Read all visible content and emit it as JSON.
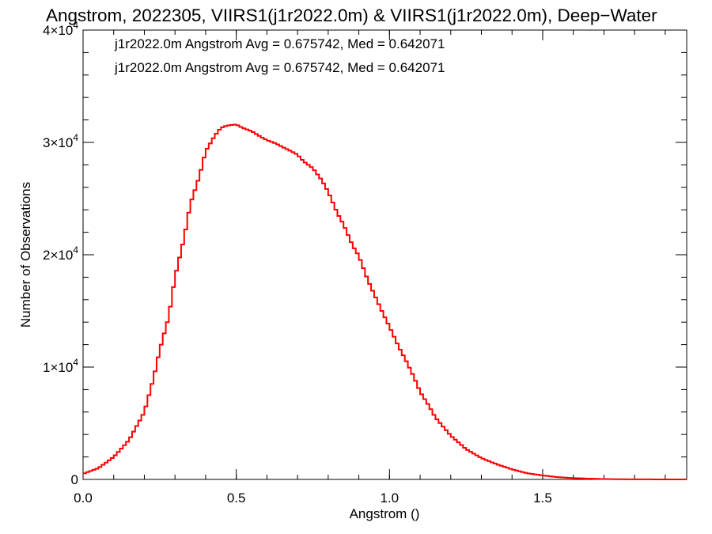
{
  "chart_data": {
    "type": "line",
    "title": "Angstrom, 2022305, VIIRS1(j1r2022.0m) & VIIRS1(j1r2022.0m), Deep−Water",
    "xlabel": "Angstrom ()",
    "ylabel": "Number of Observations",
    "xlim": [
      0.0,
      1.97
    ],
    "ylim": [
      0,
      40000
    ],
    "x_ticks": [
      "0.0",
      "0.5",
      "1.0",
      "1.5"
    ],
    "x_tick_values": [
      0.0,
      0.5,
      1.0,
      1.5
    ],
    "y_ticks": [
      {
        "value": 0,
        "base": "0",
        "exp": ""
      },
      {
        "value": 10000,
        "base": "1×10",
        "exp": "4"
      },
      {
        "value": 20000,
        "base": "2×10",
        "exp": "4"
      },
      {
        "value": 30000,
        "base": "3×10",
        "exp": "4"
      },
      {
        "value": 40000,
        "base": "4×10",
        "exp": "4"
      }
    ],
    "annotations": [
      {
        "text": "j1r2022.0m Angstrom Avg = 0.675742, Med = 0.642071",
        "color": "#000000"
      },
      {
        "text": "j1r2022.0m Angstrom Avg = 0.675742, Med = 0.642071",
        "color": "#ff0000"
      }
    ],
    "bin_width": 0.01,
    "series": [
      {
        "color": "#ff0000",
        "x": [
          0.0,
          0.05,
          0.1,
          0.15,
          0.2,
          0.23,
          0.25,
          0.28,
          0.3,
          0.33,
          0.35,
          0.38,
          0.4,
          0.43,
          0.45,
          0.47,
          0.5,
          0.52,
          0.55,
          0.58,
          0.6,
          0.63,
          0.65,
          0.68,
          0.7,
          0.72,
          0.75,
          0.78,
          0.8,
          0.83,
          0.85,
          0.88,
          0.9,
          0.93,
          0.95,
          0.98,
          1.0,
          1.03,
          1.05,
          1.08,
          1.1,
          1.13,
          1.15,
          1.2,
          1.25,
          1.3,
          1.35,
          1.4,
          1.45,
          1.5,
          1.55,
          1.6,
          1.65,
          1.7,
          1.75,
          1.8,
          1.85,
          1.9,
          1.97
        ],
        "y": [
          500,
          1000,
          2000,
          3500,
          6000,
          9000,
          11500,
          14500,
          18000,
          21500,
          24500,
          27000,
          29200,
          30600,
          31300,
          31500,
          31600,
          31300,
          31000,
          30500,
          30200,
          29900,
          29600,
          29200,
          28900,
          28300,
          27700,
          26600,
          25600,
          23700,
          22700,
          20800,
          19900,
          17700,
          16500,
          14700,
          13600,
          11800,
          10800,
          9100,
          7800,
          6500,
          5500,
          3900,
          2700,
          1900,
          1350,
          900,
          550,
          350,
          200,
          120,
          70,
          35,
          15,
          10,
          5,
          2,
          0
        ]
      }
    ]
  }
}
